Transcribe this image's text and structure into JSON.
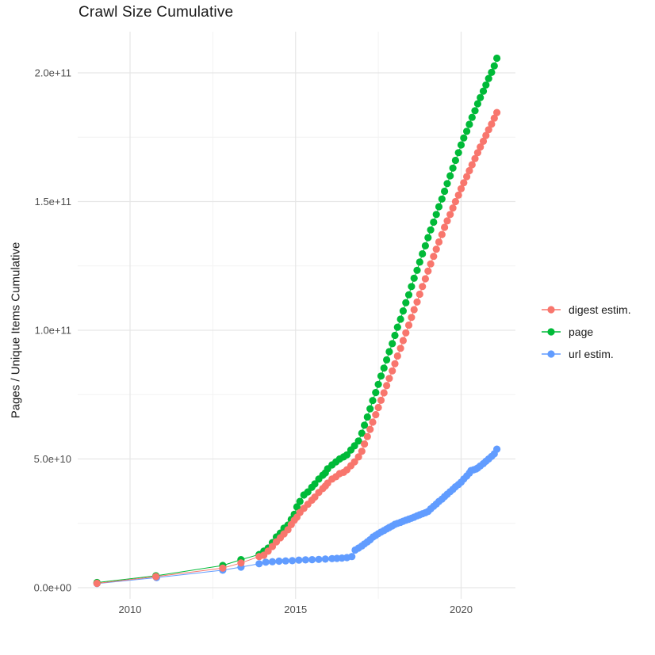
{
  "page": {
    "title": "Crawl Size Cumulative"
  },
  "chart_data": {
    "type": "line",
    "title": "Crawl Size Cumulative",
    "xlabel": "",
    "ylabel": "Pages / Unique Items Cumulative",
    "x_unit": "year",
    "y_unit": "billions (1e9) of pages / unique items",
    "xlim": [
      2008.4,
      2021.6
    ],
    "ylim_billions": [
      -5,
      216
    ],
    "grid": true,
    "legend_position": "right",
    "x_ticks": [
      {
        "value": 2010,
        "label": "2010"
      },
      {
        "value": 2015,
        "label": "2015"
      },
      {
        "value": 2020,
        "label": "2020"
      }
    ],
    "x_minor_ticks": [
      2012.5,
      2017.5
    ],
    "y_ticks": [
      {
        "value": 0,
        "label": "0.0e+00"
      },
      {
        "value": 50,
        "label": "5.0e+10"
      },
      {
        "value": 100,
        "label": "1.0e+11"
      },
      {
        "value": 150,
        "label": "1.5e+11"
      },
      {
        "value": 200,
        "label": "2.0e+11"
      }
    ],
    "y_minor_ticks": [
      25,
      75,
      125,
      175
    ],
    "series": [
      {
        "name": "digest estim.",
        "color": "#F8766D",
        "points": [
          [
            2009.0,
            1.7
          ],
          [
            2010.78,
            4.3
          ],
          [
            2012.8,
            7.6
          ],
          [
            2013.35,
            9.6
          ],
          [
            2013.9,
            12.1
          ],
          [
            2014.04,
            12.6
          ],
          [
            2014.17,
            14.2
          ],
          [
            2014.3,
            16.0
          ],
          [
            2014.42,
            17.8
          ],
          [
            2014.54,
            19.4
          ],
          [
            2014.65,
            20.9
          ],
          [
            2014.77,
            22.5
          ],
          [
            2014.87,
            24.5
          ],
          [
            2014.96,
            26.2
          ],
          [
            2015.04,
            27.4
          ],
          [
            2015.13,
            29.2
          ],
          [
            2015.25,
            30.8
          ],
          [
            2015.37,
            32.4
          ],
          [
            2015.49,
            34.0
          ],
          [
            2015.58,
            35.2
          ],
          [
            2015.7,
            37.0
          ],
          [
            2015.82,
            38.5
          ],
          [
            2015.9,
            39.5
          ],
          [
            2015.97,
            40.6
          ],
          [
            2016.1,
            42.2
          ],
          [
            2016.22,
            43.1
          ],
          [
            2016.33,
            44.3
          ],
          [
            2016.45,
            44.8
          ],
          [
            2016.55,
            45.8
          ],
          [
            2016.67,
            47.4
          ],
          [
            2016.78,
            48.9
          ],
          [
            2016.9,
            50.8
          ],
          [
            2017.0,
            53.0
          ],
          [
            2017.08,
            55.8
          ],
          [
            2017.17,
            58.7
          ],
          [
            2017.25,
            61.5
          ],
          [
            2017.33,
            64.3
          ],
          [
            2017.42,
            67.2
          ],
          [
            2017.5,
            70.0
          ],
          [
            2017.58,
            72.8
          ],
          [
            2017.67,
            75.7
          ],
          [
            2017.75,
            78.5
          ],
          [
            2017.83,
            81.3
          ],
          [
            2017.92,
            84.2
          ],
          [
            2018.0,
            87.0
          ],
          [
            2018.08,
            90.0
          ],
          [
            2018.17,
            93.0
          ],
          [
            2018.25,
            96.0
          ],
          [
            2018.33,
            99.0
          ],
          [
            2018.42,
            102.0
          ],
          [
            2018.5,
            105.0
          ],
          [
            2018.58,
            108.0
          ],
          [
            2018.67,
            111.0
          ],
          [
            2018.75,
            114.0
          ],
          [
            2018.83,
            117.0
          ],
          [
            2018.92,
            120.0
          ],
          [
            2019.0,
            123.0
          ],
          [
            2019.08,
            125.8
          ],
          [
            2019.17,
            128.7
          ],
          [
            2019.25,
            131.5
          ],
          [
            2019.33,
            134.3
          ],
          [
            2019.42,
            137.2
          ],
          [
            2019.5,
            140.0
          ],
          [
            2019.58,
            142.5
          ],
          [
            2019.67,
            145.0
          ],
          [
            2019.75,
            147.5
          ],
          [
            2019.83,
            150.0
          ],
          [
            2019.92,
            152.5
          ],
          [
            2020.0,
            155.0
          ],
          [
            2020.08,
            157.3
          ],
          [
            2020.17,
            159.7
          ],
          [
            2020.25,
            162.0
          ],
          [
            2020.33,
            164.3
          ],
          [
            2020.42,
            166.7
          ],
          [
            2020.5,
            169.0
          ],
          [
            2020.58,
            171.2
          ],
          [
            2020.67,
            173.4
          ],
          [
            2020.75,
            175.7
          ],
          [
            2020.83,
            177.9
          ],
          [
            2020.92,
            180.1
          ],
          [
            2021.0,
            182.4
          ],
          [
            2021.08,
            184.6
          ]
        ]
      },
      {
        "name": "page",
        "color": "#00BA38",
        "points": [
          [
            2009.0,
            2.0
          ],
          [
            2010.78,
            4.6
          ],
          [
            2012.8,
            8.6
          ],
          [
            2013.35,
            10.9
          ],
          [
            2013.9,
            12.9
          ],
          [
            2014.04,
            14.2
          ],
          [
            2014.17,
            15.4
          ],
          [
            2014.3,
            17.5
          ],
          [
            2014.42,
            19.7
          ],
          [
            2014.54,
            21.2
          ],
          [
            2014.65,
            23.1
          ],
          [
            2014.77,
            24.3
          ],
          [
            2014.87,
            26.5
          ],
          [
            2014.96,
            28.5
          ],
          [
            2015.04,
            31.4
          ],
          [
            2015.13,
            33.5
          ],
          [
            2015.25,
            36.0
          ],
          [
            2015.37,
            37.2
          ],
          [
            2015.49,
            39.0
          ],
          [
            2015.58,
            40.3
          ],
          [
            2015.7,
            42.2
          ],
          [
            2015.82,
            43.7
          ],
          [
            2015.9,
            44.6
          ],
          [
            2015.97,
            46.2
          ],
          [
            2016.1,
            47.7
          ],
          [
            2016.22,
            48.9
          ],
          [
            2016.33,
            50.0
          ],
          [
            2016.45,
            50.8
          ],
          [
            2016.55,
            51.6
          ],
          [
            2016.67,
            53.5
          ],
          [
            2016.78,
            55.1
          ],
          [
            2016.9,
            57.0
          ],
          [
            2017.0,
            60.0
          ],
          [
            2017.08,
            63.1
          ],
          [
            2017.17,
            66.3
          ],
          [
            2017.25,
            69.5
          ],
          [
            2017.33,
            72.7
          ],
          [
            2017.42,
            75.8
          ],
          [
            2017.5,
            79.0
          ],
          [
            2017.58,
            82.2
          ],
          [
            2017.67,
            85.3
          ],
          [
            2017.75,
            88.5
          ],
          [
            2017.83,
            91.7
          ],
          [
            2017.92,
            94.8
          ],
          [
            2018.0,
            98.0
          ],
          [
            2018.08,
            101.2
          ],
          [
            2018.17,
            104.3
          ],
          [
            2018.25,
            107.5
          ],
          [
            2018.33,
            110.7
          ],
          [
            2018.42,
            113.8
          ],
          [
            2018.5,
            117.0
          ],
          [
            2018.58,
            120.2
          ],
          [
            2018.67,
            123.3
          ],
          [
            2018.75,
            126.5
          ],
          [
            2018.83,
            129.7
          ],
          [
            2018.92,
            132.8
          ],
          [
            2019.0,
            136.0
          ],
          [
            2019.08,
            139.0
          ],
          [
            2019.17,
            142.0
          ],
          [
            2019.25,
            145.0
          ],
          [
            2019.33,
            148.0
          ],
          [
            2019.42,
            151.0
          ],
          [
            2019.5,
            154.0
          ],
          [
            2019.58,
            157.0
          ],
          [
            2019.67,
            160.0
          ],
          [
            2019.75,
            163.0
          ],
          [
            2019.83,
            166.0
          ],
          [
            2019.92,
            169.0
          ],
          [
            2020.0,
            172.0
          ],
          [
            2020.08,
            174.7
          ],
          [
            2020.17,
            177.3
          ],
          [
            2020.25,
            180.0
          ],
          [
            2020.33,
            182.7
          ],
          [
            2020.42,
            185.3
          ],
          [
            2020.5,
            188.0
          ],
          [
            2020.58,
            190.4
          ],
          [
            2020.67,
            192.9
          ],
          [
            2020.75,
            195.3
          ],
          [
            2020.83,
            197.8
          ],
          [
            2020.92,
            200.2
          ],
          [
            2021.0,
            202.7
          ],
          [
            2021.08,
            205.7
          ]
        ]
      },
      {
        "name": "url estim.",
        "color": "#619CFF",
        "points": [
          [
            2009.0,
            1.6
          ],
          [
            2010.8,
            3.9
          ],
          [
            2012.8,
            6.8
          ],
          [
            2013.35,
            8.0
          ],
          [
            2013.9,
            9.3
          ],
          [
            2014.1,
            9.9
          ],
          [
            2014.3,
            10.1
          ],
          [
            2014.5,
            10.3
          ],
          [
            2014.7,
            10.4
          ],
          [
            2014.9,
            10.5
          ],
          [
            2015.1,
            10.7
          ],
          [
            2015.3,
            10.8
          ],
          [
            2015.5,
            10.9
          ],
          [
            2015.7,
            11.0
          ],
          [
            2015.9,
            11.1
          ],
          [
            2016.1,
            11.3
          ],
          [
            2016.25,
            11.4
          ],
          [
            2016.4,
            11.5
          ],
          [
            2016.55,
            11.7
          ],
          [
            2016.7,
            12.1
          ],
          [
            2016.8,
            14.6
          ],
          [
            2016.9,
            15.4
          ],
          [
            2017.0,
            16.2
          ],
          [
            2017.08,
            17.0
          ],
          [
            2017.17,
            17.8
          ],
          [
            2017.25,
            18.6
          ],
          [
            2017.34,
            19.7
          ],
          [
            2017.42,
            20.3
          ],
          [
            2017.5,
            21.0
          ],
          [
            2017.58,
            21.6
          ],
          [
            2017.67,
            22.2
          ],
          [
            2017.75,
            22.8
          ],
          [
            2017.83,
            23.4
          ],
          [
            2017.92,
            24.0
          ],
          [
            2018.0,
            24.6
          ],
          [
            2018.08,
            25.0
          ],
          [
            2018.17,
            25.4
          ],
          [
            2018.25,
            25.8
          ],
          [
            2018.33,
            26.2
          ],
          [
            2018.42,
            26.6
          ],
          [
            2018.5,
            27.0
          ],
          [
            2018.58,
            27.4
          ],
          [
            2018.67,
            27.9
          ],
          [
            2018.75,
            28.3
          ],
          [
            2018.83,
            28.7
          ],
          [
            2018.92,
            29.1
          ],
          [
            2019.0,
            29.6
          ],
          [
            2019.08,
            30.6
          ],
          [
            2019.17,
            31.6
          ],
          [
            2019.25,
            32.5
          ],
          [
            2019.33,
            33.5
          ],
          [
            2019.42,
            34.4
          ],
          [
            2019.5,
            35.4
          ],
          [
            2019.58,
            36.3
          ],
          [
            2019.67,
            37.3
          ],
          [
            2019.75,
            38.2
          ],
          [
            2019.83,
            39.2
          ],
          [
            2019.92,
            40.1
          ],
          [
            2020.0,
            41.0
          ],
          [
            2020.08,
            42.2
          ],
          [
            2020.17,
            43.4
          ],
          [
            2020.25,
            44.5
          ],
          [
            2020.3,
            45.5
          ],
          [
            2020.38,
            45.8
          ],
          [
            2020.45,
            46.1
          ],
          [
            2020.5,
            46.5
          ],
          [
            2020.58,
            47.3
          ],
          [
            2020.67,
            48.2
          ],
          [
            2020.75,
            49.1
          ],
          [
            2020.83,
            50.0
          ],
          [
            2020.92,
            51.0
          ],
          [
            2021.0,
            52.0
          ],
          [
            2021.08,
            53.8
          ]
        ]
      }
    ]
  },
  "style": {
    "grid_major_color": "#e6e6e6",
    "grid_minor_color": "#f2f2f2",
    "tick_label_color": "#4d4d4d",
    "text_color": "#1a1a1a",
    "background": "#ffffff"
  }
}
